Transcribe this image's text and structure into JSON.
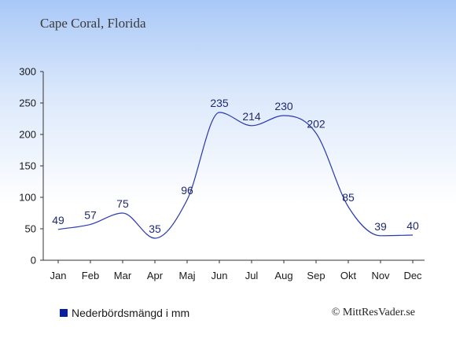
{
  "header": {
    "title": "Cape Coral, Florida"
  },
  "legend": {
    "label": "Nederbördsmängd i mm",
    "color": "#0a1fa0"
  },
  "credit": "© MittResVader.se",
  "chart_data": {
    "type": "line",
    "categories": [
      "Jan",
      "Feb",
      "Mar",
      "Apr",
      "Maj",
      "Jun",
      "Jul",
      "Aug",
      "Sep",
      "Okt",
      "Nov",
      "Dec"
    ],
    "series": [
      {
        "name": "Nederbördsmängd i mm",
        "values": [
          49,
          57,
          75,
          35,
          96,
          235,
          214,
          230,
          202,
          85,
          39,
          40
        ],
        "color": "#2a3ab0"
      }
    ],
    "y_ticks": [
      0,
      50,
      100,
      150,
      200,
      250,
      300
    ],
    "ylim": [
      0,
      300
    ],
    "grid": false,
    "legend_position": "bottom-left"
  }
}
